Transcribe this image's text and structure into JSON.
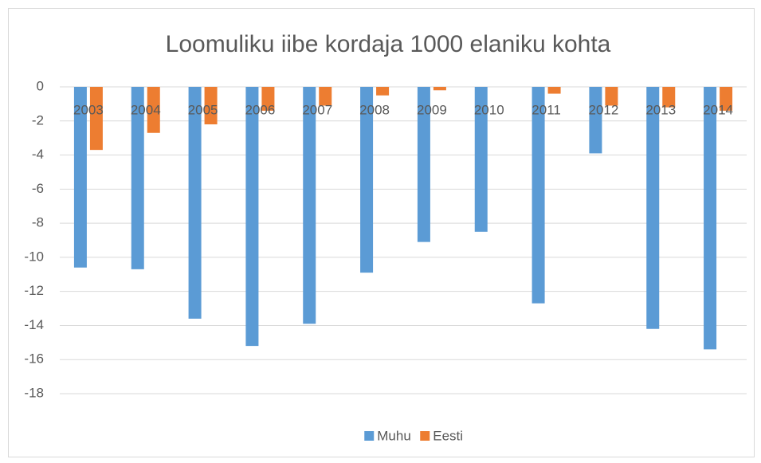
{
  "chart_data": {
    "type": "bar",
    "title": "Loomuliku iibe kordaja 1000 elaniku kohta",
    "categories": [
      "2003",
      "2004",
      "2005",
      "2006",
      "2007",
      "2008",
      "2009",
      "2010",
      "2011",
      "2012",
      "2013",
      "2014"
    ],
    "series": [
      {
        "name": "Muhu",
        "color": "#5b9bd5",
        "values": [
          -10.6,
          -10.7,
          -13.6,
          -15.2,
          -13.9,
          -10.9,
          -9.1,
          -8.5,
          -12.7,
          -3.9,
          -14.2,
          -15.4
        ]
      },
      {
        "name": "Eesti",
        "color": "#ed7d31",
        "values": [
          -3.7,
          -2.7,
          -2.2,
          -1.4,
          -1.1,
          -0.5,
          -0.2,
          0,
          -0.4,
          -1.1,
          -1.2,
          -1.4
        ]
      }
    ],
    "ylim": [
      -18,
      0
    ],
    "yticks": [
      0,
      -2,
      -4,
      -6,
      -8,
      -10,
      -12,
      -14,
      -16,
      -18
    ],
    "grid": true,
    "legend": "bottom"
  }
}
